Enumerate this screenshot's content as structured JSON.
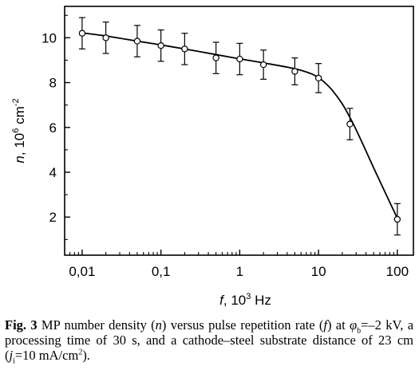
{
  "chart_data": {
    "type": "scatter",
    "x_scale": "log",
    "xlabel": {
      "var": "f",
      "sep": ", ",
      "base": "10",
      "exp": "3",
      "unit": " Hz"
    },
    "ylabel": {
      "var": "n",
      "sep": ", ",
      "base": "10",
      "exp": "6",
      "unit": " cm",
      "unit_exp": "-2"
    },
    "xlim": [
      0.006,
      160
    ],
    "ylim": [
      0.3,
      11.4
    ],
    "x_ticks": [
      0.01,
      0.1,
      1,
      10,
      100
    ],
    "x_tick_labels": [
      "0,01",
      "0,1",
      "1",
      "10",
      "100"
    ],
    "y_ticks": [
      2,
      4,
      6,
      8,
      10
    ],
    "y_tick_labels": [
      "2",
      "4",
      "6",
      "8",
      "10"
    ],
    "grid": false,
    "legend": "none",
    "series": [
      {
        "x": [
          0.01,
          0.02,
          0.05,
          0.1,
          0.2,
          0.5,
          1,
          2,
          5,
          10,
          25,
          100
        ],
        "y": [
          10.2,
          10.0,
          9.85,
          9.65,
          9.5,
          9.1,
          9.05,
          8.8,
          8.5,
          8.2,
          6.15,
          1.9
        ],
        "err": [
          0.7,
          0.7,
          0.7,
          0.7,
          0.7,
          0.7,
          0.7,
          0.65,
          0.6,
          0.65,
          0.7,
          0.7
        ],
        "fit_x": [
          0.01,
          0.02,
          0.05,
          0.1,
          0.2,
          0.5,
          1,
          2,
          5,
          8,
          10,
          12,
          15,
          20,
          25,
          30,
          40,
          50,
          70,
          100
        ],
        "fit_y": [
          10.22,
          10.08,
          9.85,
          9.68,
          9.5,
          9.25,
          9.06,
          8.88,
          8.62,
          8.4,
          8.22,
          8.0,
          7.65,
          7.05,
          6.45,
          5.9,
          4.95,
          4.2,
          3.1,
          1.95
        ]
      }
    ],
    "colors": {
      "axis": "#000000",
      "marker_fill": "#ffffff",
      "line": "#000000"
    }
  },
  "caption": {
    "fig_label": "Fig. 3",
    "t1": " MP number density (",
    "n": "n",
    "t2": ") versus pulse repetition rate (",
    "f": "f",
    "t3": ") at ",
    "phi": "φ",
    "phi_sub": "b",
    "t4": "=–2 kV, a processing time of 30 s, and a cathode–steel substrate distance of 23 cm (",
    "j": "j",
    "j_sub": "i",
    "t5": "=10 mA/cm",
    "t5_sup": "2",
    "t6": ")."
  }
}
